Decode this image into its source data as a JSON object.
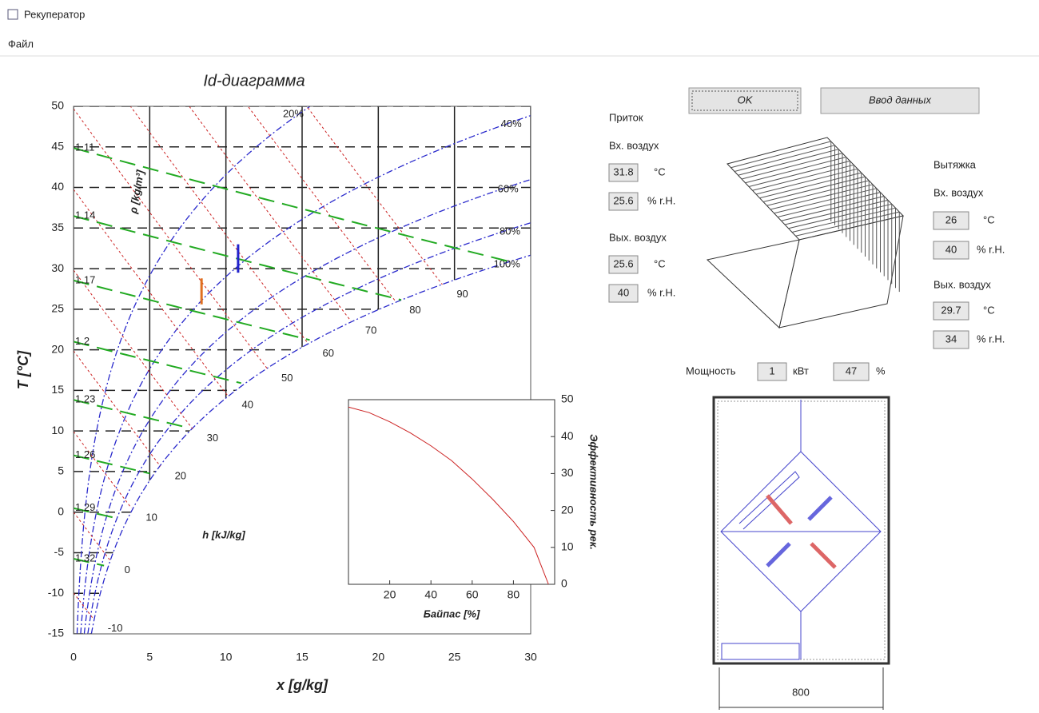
{
  "window": {
    "title": "Рекуператор",
    "menu": [
      "Файл"
    ]
  },
  "buttons": {
    "ok": "OK",
    "input": "Ввод данных"
  },
  "supply": {
    "title": "Приток",
    "inlet": {
      "label": "Вх. воздух",
      "temperature": 31.8,
      "temperature_unit": "°C",
      "humidity": 25.6,
      "humidity_unit": "% r.H."
    },
    "outlet": {
      "label": "Вых. воздух",
      "temperature": 25.6,
      "temperature_unit": "°C",
      "humidity": 40,
      "humidity_unit": "% r.H."
    }
  },
  "exhaust": {
    "title": "Вытяжка",
    "inlet": {
      "label": "Вх. воздух",
      "temperature": 26,
      "temperature_unit": "°C",
      "humidity": 40,
      "humidity_unit": "% r.H."
    },
    "outlet": {
      "label": "Вых. воздух",
      "temperature": 29.7,
      "temperature_unit": "°C",
      "humidity": 34,
      "humidity_unit": "% r.H."
    }
  },
  "power": {
    "label": "Мощность",
    "value": 1,
    "unit": "кВт",
    "efficiency": 47,
    "efficiency_unit": "%"
  },
  "dimension": 800,
  "chart_data": [
    {
      "type": "psychrometric",
      "title": "Id-диаграмма",
      "x_label": "x [g/kg]",
      "y_label": "T [°C]",
      "xlim": [
        0,
        30
      ],
      "ylim": [
        -15,
        50
      ],
      "xticks": [
        0,
        5,
        10,
        15,
        20,
        25,
        30
      ],
      "yticks": [
        -15,
        -10,
        -5,
        0,
        5,
        10,
        15,
        20,
        25,
        30,
        35,
        40,
        45,
        50
      ],
      "grid": true,
      "rh_lines": [
        {
          "value": 20,
          "label": "20%"
        },
        {
          "value": 40,
          "label": "40%"
        },
        {
          "value": 60,
          "label": "60%"
        },
        {
          "value": 80,
          "label": "80%"
        },
        {
          "value": 100,
          "label": "100%"
        }
      ],
      "rh_color": "#2a2acc",
      "enthalpy_lines": [
        -10,
        0,
        10,
        20,
        30,
        40,
        50,
        60,
        70,
        80,
        90
      ],
      "enthalpy_color": "#cc2222",
      "enthalpy_label": "h [kJ/kg]",
      "density_lines": [
        1.11,
        1.14,
        1.17,
        1.2,
        1.23,
        1.26,
        1.29,
        1.32
      ],
      "density_color": "#22aa22",
      "density_label": "ρ [kg/m³]",
      "process": [
        {
          "color": "#e07020",
          "x": [
            8.4,
            8.4
          ],
          "y": [
            28.8,
            25.6
          ]
        },
        {
          "color": "#2222cc",
          "x": [
            10.8,
            10.8
          ],
          "y": [
            29.5,
            33
          ]
        }
      ]
    },
    {
      "type": "line",
      "x_label": "Байпас [%]",
      "y_label": "Эффективность рек.",
      "xlim": [
        0,
        100
      ],
      "ylim": [
        0,
        50
      ],
      "xticks": [
        20,
        40,
        60,
        80
      ],
      "yticks": [
        0,
        10,
        20,
        30,
        40,
        50
      ],
      "x": [
        0,
        10,
        20,
        30,
        40,
        50,
        60,
        70,
        80,
        90,
        97
      ],
      "values": [
        48,
        46.5,
        44,
        41,
        37.5,
        33.5,
        28.5,
        23,
        17,
        10,
        0
      ],
      "color": "#cc2222"
    }
  ]
}
